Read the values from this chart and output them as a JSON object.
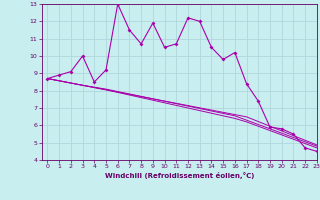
{
  "xlabel": "Windchill (Refroidissement éolien,°C)",
  "background_color": "#c8eef0",
  "grid_color": "#b0d8dc",
  "line_color": "#aa00aa",
  "x": [
    0,
    1,
    2,
    3,
    4,
    5,
    6,
    7,
    8,
    9,
    10,
    11,
    12,
    13,
    14,
    15,
    16,
    17,
    18,
    19,
    20,
    21,
    22,
    23
  ],
  "y_main": [
    8.7,
    8.9,
    9.1,
    10.0,
    8.5,
    9.2,
    13.0,
    11.5,
    10.7,
    11.9,
    10.5,
    10.7,
    12.2,
    12.0,
    10.5,
    9.8,
    10.2,
    8.4,
    7.4,
    5.9,
    5.8,
    5.5,
    4.7,
    4.5
  ],
  "y_line1": [
    8.7,
    8.57,
    8.44,
    8.31,
    8.18,
    8.05,
    7.92,
    7.79,
    7.66,
    7.53,
    7.4,
    7.27,
    7.14,
    7.01,
    6.88,
    6.75,
    6.62,
    6.49,
    6.22,
    5.95,
    5.68,
    5.41,
    5.14,
    4.87
  ],
  "y_line2": [
    8.7,
    8.57,
    8.44,
    8.31,
    8.18,
    8.05,
    7.9,
    7.75,
    7.6,
    7.45,
    7.3,
    7.15,
    7.0,
    6.85,
    6.7,
    6.55,
    6.4,
    6.2,
    5.95,
    5.7,
    5.45,
    5.2,
    4.95,
    4.7
  ],
  "y_line3": [
    8.7,
    8.57,
    8.44,
    8.31,
    8.2,
    8.09,
    7.95,
    7.81,
    7.67,
    7.53,
    7.39,
    7.25,
    7.11,
    6.97,
    6.83,
    6.69,
    6.55,
    6.3,
    6.05,
    5.8,
    5.55,
    5.3,
    5.05,
    4.8
  ],
  "ylim": [
    4,
    13
  ],
  "xlim": [
    -0.5,
    23
  ],
  "yticks": [
    4,
    5,
    6,
    7,
    8,
    9,
    10,
    11,
    12,
    13
  ],
  "xticks": [
    0,
    1,
    2,
    3,
    4,
    5,
    6,
    7,
    8,
    9,
    10,
    11,
    12,
    13,
    14,
    15,
    16,
    17,
    18,
    19,
    20,
    21,
    22,
    23
  ]
}
